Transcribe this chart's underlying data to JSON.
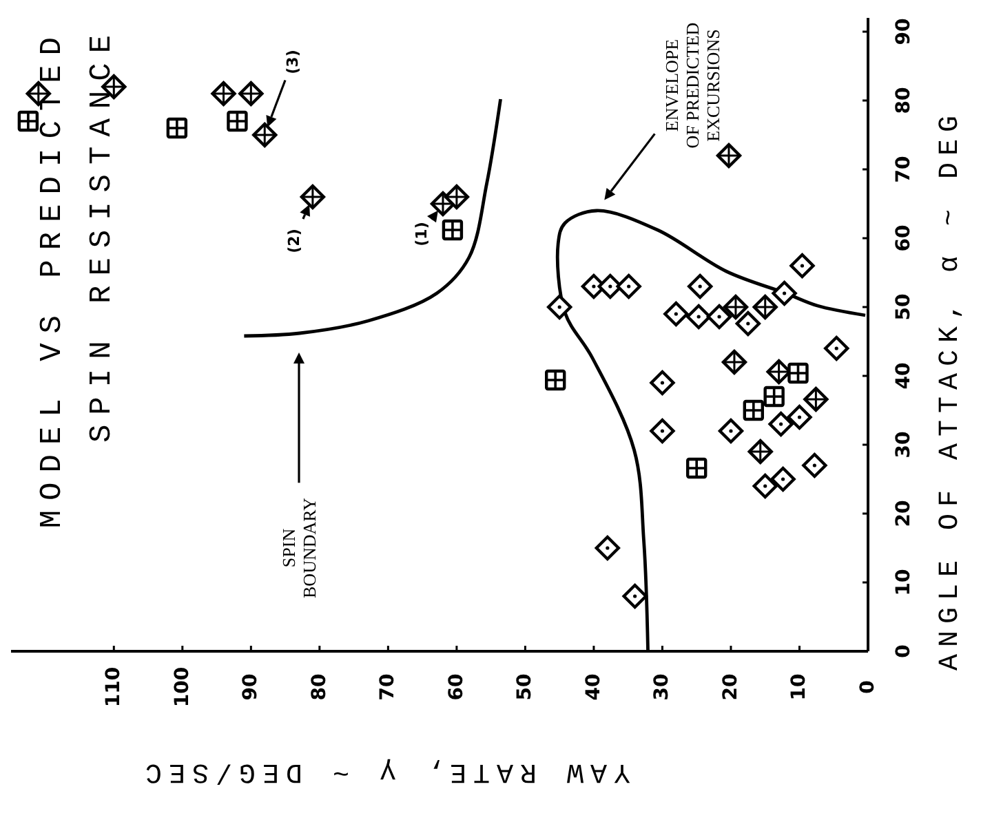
{
  "chart_data": {
    "type": "scatter",
    "title": "MODEL VS PREDICTED",
    "subtitle": "SPIN RESISTANCE",
    "xlabel": "YAW RATE, γ ~ DEG/SEC",
    "ylabel": "ANGLE OF ATTACK, α ~ DEG",
    "xlim": [
      125,
      0
    ],
    "xticks": [
      0,
      10,
      20,
      30,
      40,
      50,
      60,
      70,
      80,
      90,
      100,
      110
    ],
    "ylim": [
      0,
      92
    ],
    "yticks": [
      0,
      10,
      20,
      30,
      40,
      50,
      60,
      70,
      80,
      90
    ],
    "grid": false,
    "series": [
      {
        "marker": "diamond",
        "color": "#000000",
        "x": [
          30,
          30,
          38,
          34,
          20,
          12.7,
          10,
          15,
          12.4,
          7.8,
          45,
          40,
          37.6,
          34.9,
          24.5,
          28,
          24.7,
          21.7,
          17.5,
          12.2,
          9.6,
          4.6
        ],
        "values": [
          39,
          32,
          15,
          8,
          32,
          33,
          34,
          24,
          25,
          27,
          50,
          53,
          53,
          53,
          53,
          49,
          48.6,
          48.6,
          47.6,
          52,
          56,
          44
        ]
      },
      {
        "marker": "diamond",
        "color": "#000000",
        "x": [
          20.3,
          19.5,
          13,
          7.6,
          15.7,
          19.3,
          15,
          62,
          60,
          81,
          94,
          90,
          88,
          121,
          110
        ],
        "values": [
          72,
          42,
          40.6,
          36.6,
          29,
          50,
          50,
          65,
          66,
          66,
          81,
          81,
          75,
          81,
          82
        ]
      },
      {
        "marker": "square",
        "color": "#000000",
        "x": [
          45.6,
          25,
          10.2,
          13.7,
          16.7,
          60.6,
          100.8,
          92,
          122.5
        ],
        "values": [
          39.4,
          26.6,
          40.4,
          37,
          35,
          61.2,
          76,
          77,
          77
        ]
      },
      {
        "type": "line",
        "marker": "none",
        "color": "#000000",
        "x": [
          53.6,
          55.6,
          58.2,
          62.9,
          72.9,
          82.9,
          91
        ],
        "values": [
          80.2,
          68,
          57.2,
          52,
          48,
          46.2,
          45.8
        ]
      },
      {
        "type": "line",
        "marker": "none",
        "color": "#000000",
        "x": [
          0.4,
          7.4,
          12,
          20.7,
          30.7,
          39.6,
          44.2,
          45.2,
          44.2,
          40.2,
          34.1,
          32.7,
          32.1
        ],
        "values": [
          48.8,
          50.2,
          52,
          55.2,
          61.2,
          64,
          62.2,
          59.2,
          49.2,
          42.6,
          29.2,
          16,
          0
        ]
      }
    ],
    "annotations": [
      "SPIN BOUNDARY",
      "ENVELOPE OF PREDICTED EXCURSIONS",
      {
        "text": "(1)",
        "x": 62,
        "y": 65
      },
      {
        "text": "(2)",
        "x": 81,
        "y": 66
      },
      "(3)"
    ]
  }
}
